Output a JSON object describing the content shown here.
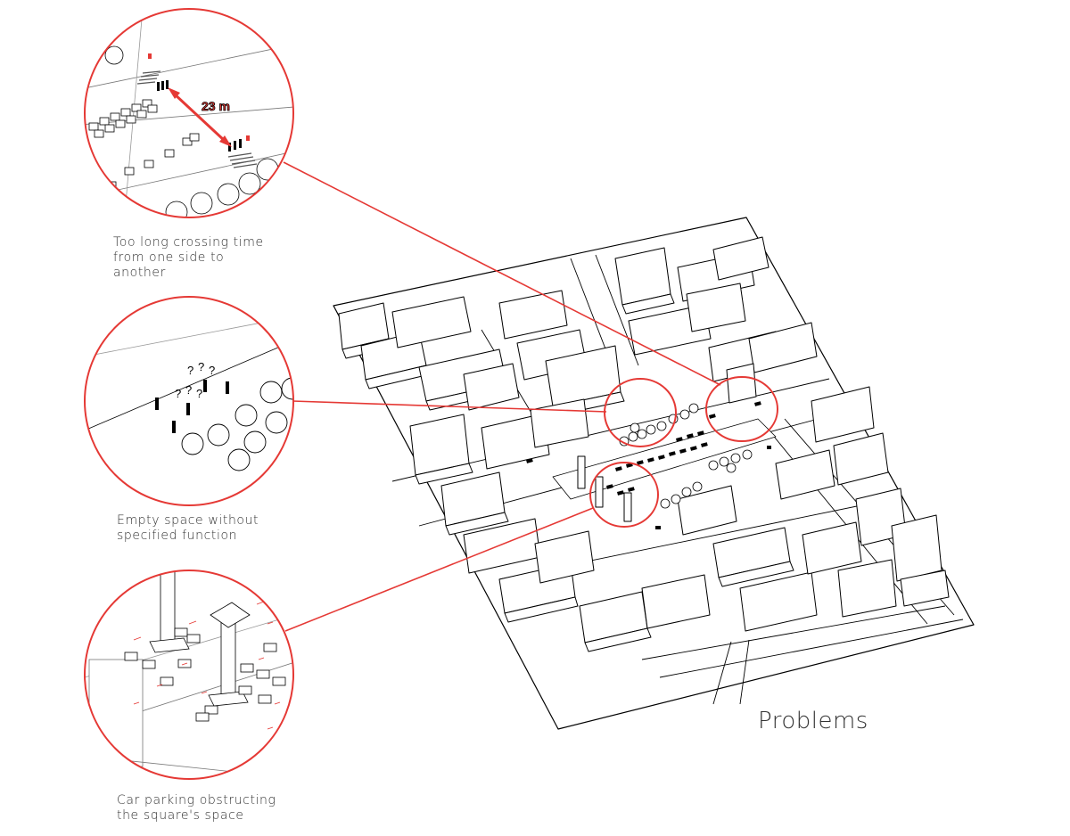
{
  "title": "Problems",
  "colors": {
    "accent": "#e53935",
    "line": "#000000",
    "text": "#333333"
  },
  "callouts": [
    {
      "id": "crossing",
      "caption_lines": [
        "Too long crossing time",
        "from one side to another"
      ],
      "measure": "23 m"
    },
    {
      "id": "empty-space",
      "caption_lines": [
        "Empty space without",
        "specified function"
      ],
      "marks": "?"
    },
    {
      "id": "car-parking",
      "caption_lines": [
        "Car parking obstructing",
        "the square's space"
      ]
    }
  ]
}
